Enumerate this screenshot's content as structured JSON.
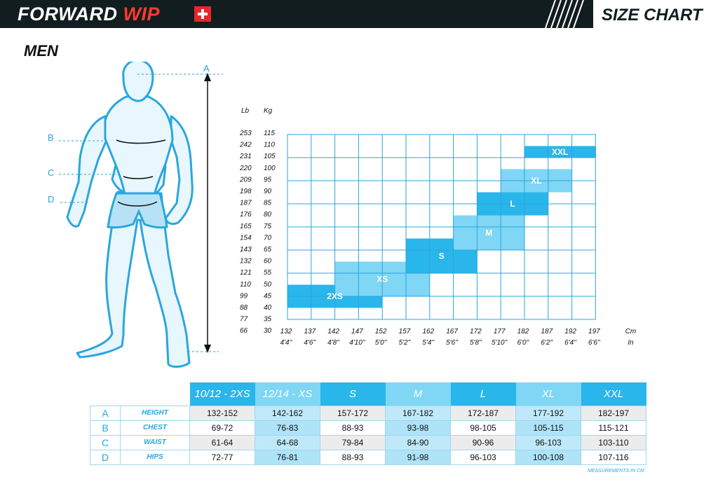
{
  "header": {
    "brand_a": "FORWARD ",
    "brand_b": "WIP",
    "title": "SIZE CHART"
  },
  "section_title": "MEN",
  "body_labels": {
    "a": "A",
    "b": "B",
    "c": "C",
    "d": "D"
  },
  "chart_data": {
    "type": "heatmap",
    "y_lb_header": "Lb",
    "y_kg_header": "Kg",
    "y_lb": [
      "253",
      "242",
      "231",
      "220",
      "209",
      "198",
      "187",
      "176",
      "165",
      "154",
      "143",
      "132",
      "121",
      "110",
      "99",
      "88",
      "77",
      "66"
    ],
    "y_kg": [
      "115",
      "110",
      "105",
      "100",
      "95",
      "90",
      "85",
      "80",
      "75",
      "70",
      "65",
      "60",
      "55",
      "50",
      "45",
      "40",
      "35",
      "30"
    ],
    "x_cm_header": "Cm",
    "x_in_header": "In",
    "x_cm": [
      "132",
      "137",
      "142",
      "147",
      "152",
      "157",
      "162",
      "167",
      "172",
      "177",
      "182",
      "187",
      "192",
      "197"
    ],
    "x_in": [
      "4'4''",
      "4'6''",
      "4'8''",
      "4'10''",
      "5'0''",
      "5'2''",
      "5'4''",
      "5'6''",
      "5'8''",
      "5'10''",
      "6'0''",
      "6'2''",
      "6'4''",
      "6'6''"
    ],
    "regions": [
      {
        "label": "2XS",
        "height_cm": [
          132,
          152
        ],
        "weight_kg": [
          35,
          45
        ],
        "color": "#29b6ea"
      },
      {
        "label": "XS",
        "height_cm": [
          142,
          162
        ],
        "weight_kg": [
          40,
          55
        ],
        "color": "#7fd6f5"
      },
      {
        "label": "S",
        "height_cm": [
          157,
          172
        ],
        "weight_kg": [
          50,
          65
        ],
        "color": "#29b6ea"
      },
      {
        "label": "M",
        "height_cm": [
          167,
          182
        ],
        "weight_kg": [
          60,
          75
        ],
        "color": "#7fd6f5"
      },
      {
        "label": "L",
        "height_cm": [
          172,
          187
        ],
        "weight_kg": [
          75,
          85
        ],
        "color": "#29b6ea"
      },
      {
        "label": "XL",
        "height_cm": [
          177,
          192
        ],
        "weight_kg": [
          85,
          95
        ],
        "color": "#7fd6f5"
      },
      {
        "label": "XXL",
        "height_cm": [
          182,
          197
        ],
        "weight_kg": [
          100,
          105
        ],
        "color": "#29b6ea"
      }
    ]
  },
  "size_table": {
    "columns": [
      {
        "label": "10/12 - 2XS",
        "color": "#29b6ea"
      },
      {
        "label": "12/14 - XS",
        "color": "#7fd6f5"
      },
      {
        "label": "S",
        "color": "#29b6ea"
      },
      {
        "label": "M",
        "color": "#7fd6f5"
      },
      {
        "label": "L",
        "color": "#29b6ea"
      },
      {
        "label": "XL",
        "color": "#7fd6f5"
      },
      {
        "label": "XXL",
        "color": "#29b6ea"
      }
    ],
    "rows": [
      {
        "letter": "A",
        "name": "HEIGHT",
        "values": [
          "132-152",
          "142-162",
          "157-172",
          "167-182",
          "172-187",
          "177-192",
          "182-197"
        ]
      },
      {
        "letter": "B",
        "name": "CHEST",
        "values": [
          "69-72",
          "76-83",
          "88-93",
          "93-98",
          "98-105",
          "105-115",
          "115-121"
        ]
      },
      {
        "letter": "C",
        "name": "WAIST",
        "values": [
          "61-64",
          "64-68",
          "79-84",
          "84-90",
          "90-96",
          "96-103",
          "103-110"
        ]
      },
      {
        "letter": "D",
        "name": "HIPS",
        "values": [
          "72-77",
          "76-81",
          "88-93",
          "91-98",
          "96-103",
          "100-108",
          "107-116"
        ]
      }
    ],
    "unit_note": "MEASUREMENTS IN CM"
  }
}
